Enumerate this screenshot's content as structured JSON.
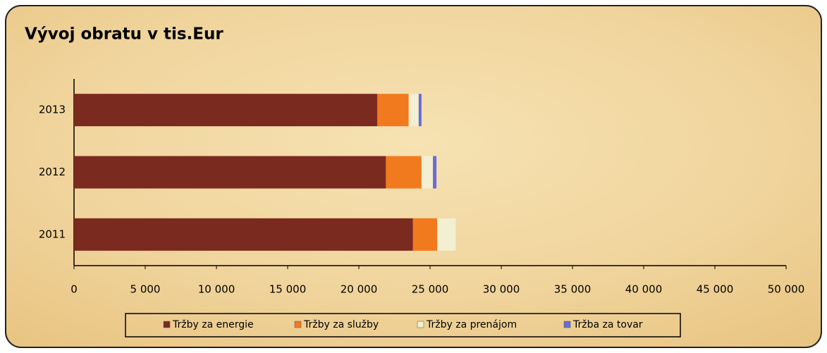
{
  "chart_data": {
    "type": "stacked-bar-horizontal",
    "title": "Vývoj obratu v tis.Eur",
    "categories": [
      "2013",
      "2012",
      "2011"
    ],
    "series": [
      {
        "name": "Tržby za energie",
        "color": "#7a2a1f",
        "values": [
          21300,
          21900,
          23800
        ]
      },
      {
        "name": "Tržby za služby",
        "color": "#f27a1e",
        "values": [
          2200,
          2500,
          1700
        ]
      },
      {
        "name": "Tržby za prenájom",
        "color": "#f2efd2",
        "values": [
          700,
          800,
          1300
        ]
      },
      {
        "name": "Tržba za tovar",
        "color": "#6b6bd6",
        "values": [
          200,
          250,
          0
        ]
      }
    ],
    "xlim": [
      0,
      50000
    ],
    "xticks": [
      0,
      {
        "value": 5000,
        "label": "5 000"
      },
      {
        "value": 10000,
        "label": "10 000"
      },
      {
        "value": 15000,
        "label": "15 000"
      },
      {
        "value": 20000,
        "label": "20 000"
      },
      {
        "value": 25000,
        "label": "25 000"
      },
      {
        "value": 30000,
        "label": "30 000"
      },
      {
        "value": 35000,
        "label": "35 000"
      },
      {
        "value": 40000,
        "label": "40 000"
      },
      {
        "value": 45000,
        "label": "45 000"
      },
      {
        "value": 50000,
        "label": "50 000"
      }
    ],
    "legend": "bottom"
  }
}
